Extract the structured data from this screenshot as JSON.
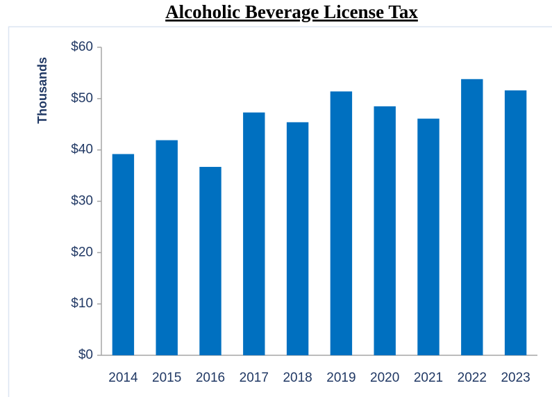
{
  "chart_data": {
    "type": "bar",
    "title": "Alcoholic Beverage License Tax",
    "y_label": "Thousands",
    "categories": [
      "2014",
      "2015",
      "2016",
      "2017",
      "2018",
      "2019",
      "2020",
      "2021",
      "2022",
      "2023"
    ],
    "values": [
      39.2,
      41.9,
      36.7,
      47.3,
      45.4,
      51.4,
      48.5,
      46.1,
      53.8,
      51.6
    ],
    "color": "#0070c0",
    "ylim": [
      0,
      60
    ],
    "yticks": [
      {
        "value": 0,
        "label": "$0"
      },
      {
        "value": 10,
        "label": "$10"
      },
      {
        "value": 20,
        "label": "$20"
      },
      {
        "value": 30,
        "label": "$30"
      },
      {
        "value": 40,
        "label": "$40"
      },
      {
        "value": 50,
        "label": "$50"
      },
      {
        "value": 60,
        "label": "$60"
      }
    ],
    "grid": false
  }
}
